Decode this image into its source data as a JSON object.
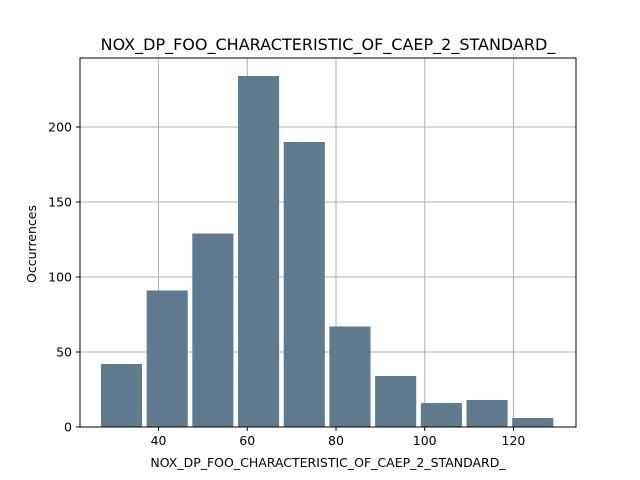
{
  "chart_data": {
    "type": "bar",
    "title": "NOX_DP_FOO_CHARACTERISTIC_OF_CAEP_2_STANDARD_",
    "xlabel": "NOX_DP_FOO_CHARACTERISTIC_OF_CAEP_2_STANDARD_",
    "ylabel": "Occurrences",
    "bins": [
      {
        "start": 26.5,
        "end": 36.8,
        "value": 42
      },
      {
        "start": 36.8,
        "end": 47.1,
        "value": 91
      },
      {
        "start": 47.1,
        "end": 57.4,
        "value": 129
      },
      {
        "start": 57.4,
        "end": 67.7,
        "value": 234
      },
      {
        "start": 67.7,
        "end": 78.0,
        "value": 190
      },
      {
        "start": 78.0,
        "end": 88.3,
        "value": 67
      },
      {
        "start": 88.3,
        "end": 98.6,
        "value": 34
      },
      {
        "start": 98.6,
        "end": 108.9,
        "value": 16
      },
      {
        "start": 108.9,
        "end": 119.2,
        "value": 18
      },
      {
        "start": 119.2,
        "end": 129.5,
        "value": 6
      }
    ],
    "xticks": [
      40,
      60,
      80,
      100,
      120
    ],
    "yticks": [
      0,
      50,
      100,
      150,
      200
    ],
    "xlim": [
      22.3,
      134.1
    ],
    "ylim": [
      0,
      246
    ],
    "grid": true,
    "bar_color": "#607b8e",
    "grid_color": "#b0b0b0"
  }
}
